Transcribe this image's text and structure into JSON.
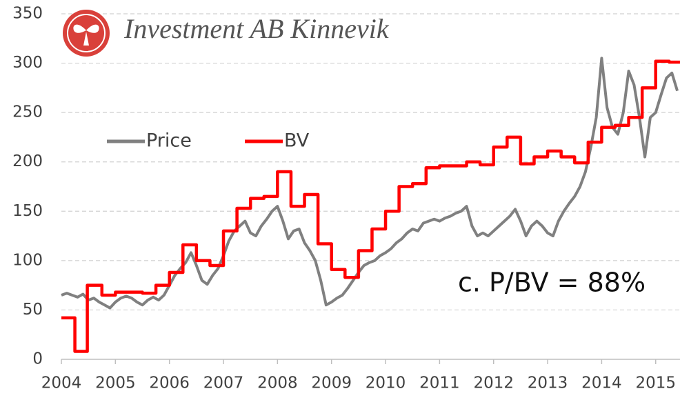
{
  "chart_data": {
    "type": "line",
    "title": "Investment AB Kinnevik",
    "annotation": "c. P/BV = 88%",
    "xlim": [
      2004,
      2015.45
    ],
    "xticks": [
      2004,
      2005,
      2006,
      2007,
      2008,
      2009,
      2010,
      2011,
      2012,
      2013,
      2014,
      2015
    ],
    "ylim": [
      0,
      350
    ],
    "yticks": [
      0,
      50,
      100,
      150,
      200,
      250,
      300,
      350
    ],
    "grid": true,
    "legend": "upper left",
    "series": [
      {
        "name": "Price",
        "color": "#808080",
        "step": false,
        "x": [
          2004.0,
          2004.1,
          2004.2,
          2004.3,
          2004.4,
          2004.5,
          2004.6,
          2004.7,
          2004.8,
          2004.9,
          2005.0,
          2005.1,
          2005.2,
          2005.3,
          2005.4,
          2005.5,
          2005.6,
          2005.7,
          2005.8,
          2005.9,
          2006.0,
          2006.1,
          2006.2,
          2006.3,
          2006.4,
          2006.5,
          2006.6,
          2006.7,
          2006.8,
          2006.9,
          2007.0,
          2007.1,
          2007.2,
          2007.3,
          2007.4,
          2007.5,
          2007.6,
          2007.7,
          2007.8,
          2007.9,
          2008.0,
          2008.1,
          2008.2,
          2008.3,
          2008.4,
          2008.5,
          2008.6,
          2008.7,
          2008.8,
          2008.9,
          2009.0,
          2009.1,
          2009.2,
          2009.3,
          2009.4,
          2009.5,
          2009.6,
          2009.7,
          2009.8,
          2009.9,
          2010.0,
          2010.1,
          2010.2,
          2010.3,
          2010.4,
          2010.5,
          2010.6,
          2010.7,
          2010.8,
          2010.9,
          2011.0,
          2011.1,
          2011.2,
          2011.3,
          2011.4,
          2011.5,
          2011.6,
          2011.7,
          2011.8,
          2011.9,
          2012.0,
          2012.1,
          2012.2,
          2012.3,
          2012.4,
          2012.5,
          2012.6,
          2012.7,
          2012.8,
          2012.9,
          2013.0,
          2013.1,
          2013.2,
          2013.3,
          2013.4,
          2013.5,
          2013.6,
          2013.7,
          2013.8,
          2013.9,
          2014.0,
          2014.1,
          2014.2,
          2014.3,
          2014.4,
          2014.5,
          2014.6,
          2014.7,
          2014.8,
          2014.9,
          2015.0,
          2015.1,
          2015.2,
          2015.3,
          2015.4
        ],
        "values": [
          65,
          67,
          65,
          63,
          66,
          60,
          62,
          58,
          55,
          52,
          58,
          62,
          64,
          62,
          58,
          55,
          60,
          63,
          60,
          65,
          75,
          85,
          92,
          98,
          108,
          95,
          80,
          76,
          85,
          92,
          105,
          120,
          130,
          135,
          140,
          128,
          125,
          135,
          142,
          150,
          155,
          140,
          122,
          130,
          132,
          118,
          110,
          100,
          80,
          55,
          58,
          62,
          65,
          72,
          80,
          88,
          95,
          98,
          100,
          105,
          108,
          112,
          118,
          122,
          128,
          132,
          130,
          138,
          140,
          142,
          140,
          143,
          145,
          148,
          150,
          155,
          135,
          125,
          128,
          125,
          130,
          135,
          140,
          145,
          152,
          140,
          125,
          135,
          140,
          135,
          128,
          125,
          140,
          150,
          158,
          165,
          175,
          190,
          215,
          245,
          305,
          255,
          235,
          228,
          250,
          292,
          278,
          245,
          205,
          245,
          250,
          268,
          285,
          290,
          272
        ]
      },
      {
        "name": "BV",
        "color": "#ff0000",
        "step": true,
        "x": [
          2004.0,
          2004.25,
          2004.48,
          2004.75,
          2005.0,
          2005.5,
          2005.75,
          2006.0,
          2006.25,
          2006.5,
          2006.75,
          2007.0,
          2007.25,
          2007.5,
          2007.75,
          2008.0,
          2008.25,
          2008.5,
          2008.75,
          2009.0,
          2009.25,
          2009.5,
          2009.75,
          2010.0,
          2010.25,
          2010.5,
          2010.75,
          2011.0,
          2011.5,
          2011.75,
          2012.0,
          2012.25,
          2012.5,
          2012.75,
          2013.0,
          2013.25,
          2013.5,
          2013.75,
          2014.0,
          2014.25,
          2014.5,
          2014.75,
          2015.0,
          2015.25
        ],
        "values": [
          42,
          8,
          75,
          65,
          68,
          67,
          75,
          88,
          116,
          100,
          95,
          130,
          153,
          163,
          165,
          190,
          155,
          167,
          117,
          91,
          83,
          110,
          132,
          150,
          175,
          178,
          194,
          196,
          200,
          197,
          215,
          225,
          198,
          205,
          211,
          205,
          199,
          220,
          235,
          237,
          245,
          275,
          302,
          301
        ]
      }
    ]
  }
}
